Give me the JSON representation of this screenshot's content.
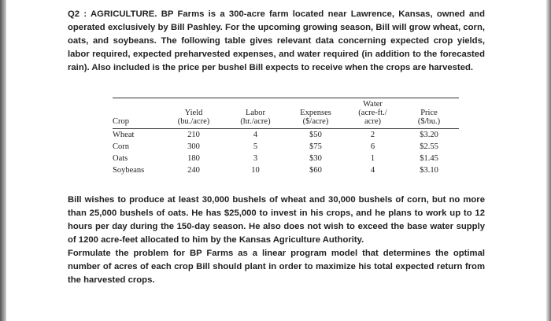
{
  "intro": "Q2 : AGRICULTURE. BP Farms is a 300-acre farm located near Lawrence, Kansas, owned and operated exclusively by Bill Pashley. For the upcoming growing season, Bill will grow wheat, corn, oats, and soybeans. The following table gives relevant data concerning expected crop yields, labor required, expected preharvested expenses, and water required (in addition to the forecasted rain). Also included is the price per bushel Bill expects to receive when the crops are harvested.",
  "table": {
    "headers": [
      {
        "line1": "",
        "line2": "",
        "line3": "Crop"
      },
      {
        "line1": "",
        "line2": "Yield",
        "line3": "(bu./acre)"
      },
      {
        "line1": "",
        "line2": "Labor",
        "line3": "(hr./acre)"
      },
      {
        "line1": "",
        "line2": "Expenses",
        "line3": "($/acre)"
      },
      {
        "line1": "Water",
        "line2": "(acre-ft./",
        "line3": "acre)"
      },
      {
        "line1": "",
        "line2": "Price",
        "line3": "($/bu.)"
      }
    ],
    "rows": [
      [
        "Wheat",
        "210",
        "4",
        "$50",
        "2",
        "$3.20"
      ],
      [
        "Corn",
        "300",
        "5",
        "$75",
        "6",
        "$2.55"
      ],
      [
        "Oats",
        "180",
        "3",
        "$30",
        "1",
        "$1.45"
      ],
      [
        "Soybeans",
        "240",
        "10",
        "$60",
        "4",
        "$3.10"
      ]
    ]
  },
  "body": "Bill wishes to produce at least 30,000 bushels of wheat and 30,000 bushels of corn, but no more than 25,000 bushels of oats. He has $25,000 to invest in his crops, and he plans to work up to 12 hours per day during the 150-day season. He also does not wish to exceed the base water supply of 1200 acre-feet allocated to him by the Kansas Agriculture Authority.",
  "task": "Formulate the problem for BP Farms as a linear program model that determines the optimal number of acres of each crop Bill should plant in order to maximize his total expected return from the harvested crops."
}
